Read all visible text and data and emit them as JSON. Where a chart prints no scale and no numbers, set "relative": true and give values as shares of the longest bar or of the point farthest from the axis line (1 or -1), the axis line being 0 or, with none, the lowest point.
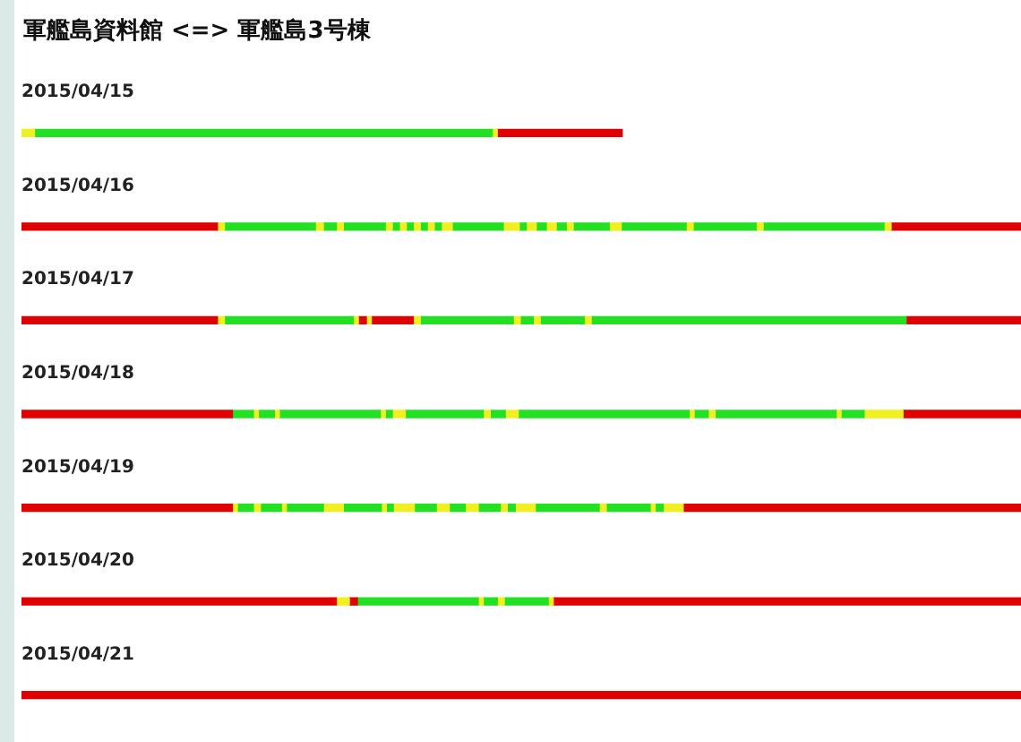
{
  "chart_data": {
    "type": "bar",
    "orientation": "horizontal",
    "stacked": true,
    "relative": true,
    "legend": false,
    "tick_labels": "y",
    "title": "軍艦島資料館 <=> 軍艦島3号棟",
    "categories": [
      "2015/04/15",
      "2015/04/16",
      "2015/04/17",
      "2015/04/18",
      "2015/04/19",
      "2015/04/20",
      "2015/04/21"
    ],
    "series": [
      {
        "values": [
          0.013,
          0.196,
          0.196,
          0.211,
          0.211,
          0.315,
          1
        ],
        "colors": [
          "#f0f020",
          "#e00000",
          "#e00000",
          "#e00000",
          "#e00000",
          "#e00000",
          "#e00000"
        ]
      },
      {
        "values": [
          0.458,
          0.007,
          0.007,
          0.021,
          0.005,
          0.013,
          null
        ],
        "colors": [
          "#22e022",
          "#f0f020",
          "#f0f020",
          "#22e022",
          "#f0f020",
          "#f0f020",
          null
        ]
      },
      {
        "values": [
          0.005,
          0.091,
          0.129,
          0.005,
          0.016,
          0.008,
          null
        ],
        "colors": [
          "#f0f020",
          "#22e022",
          "#22e022",
          "#f0f020",
          "#22e022",
          "#e00000",
          null
        ]
      },
      {
        "values": [
          0.125,
          0.008,
          0.005,
          0.016,
          0.007,
          0.121,
          null
        ],
        "colors": [
          "#e00000",
          "#f0f020",
          "#f0f020",
          "#22e022",
          "#f0f020",
          "#22e022",
          null
        ]
      },
      {
        "values": [
          null,
          0.013,
          0.008,
          0.005,
          0.021,
          0.005,
          null
        ],
        "colors": [
          null,
          "#22e022",
          "#e00000",
          "#f0f020",
          "#22e022",
          "#f0f020",
          null
        ]
      },
      {
        "values": [
          null,
          0.007,
          0.005,
          0.101,
          0.005,
          0.014,
          null
        ],
        "colors": [
          null,
          "#f0f020",
          "#f0f020",
          "#22e022",
          "#f0f020",
          "#22e022",
          null
        ]
      },
      {
        "values": [
          null,
          0.042,
          0.042,
          0.005,
          0.037,
          0.007,
          null
        ],
        "colors": [
          null,
          "#22e022",
          "#e00000",
          "#f0f020",
          "#22e022",
          "#f0f020",
          null
        ]
      },
      {
        "values": [
          null,
          0.007,
          0.007,
          0.007,
          0.02,
          0.044,
          null
        ],
        "colors": [
          null,
          "#f0f020",
          "#f0f020",
          "#22e022",
          "#f0f020",
          "#22e022",
          null
        ]
      },
      {
        "values": [
          null,
          0.007,
          0.093,
          0.013,
          0.038,
          0.005,
          null
        ],
        "colors": [
          null,
          "#22e022",
          "#22e022",
          "#f0f020",
          "#22e022",
          "#f0f020",
          null
        ]
      },
      {
        "values": [
          null,
          0.007,
          0.007,
          0.078,
          0.005,
          0.468,
          null
        ],
        "colors": [
          null,
          "#f0f020",
          "#f0f020",
          "#22e022",
          "#f0f020",
          "#e00000",
          null
        ]
      },
      {
        "values": [
          null,
          0.007,
          0.013,
          0.007,
          0.007,
          null,
          null
        ],
        "colors": [
          null,
          "#22e022",
          "#22e022",
          "#f0f020",
          "#22e022",
          null,
          null
        ]
      },
      {
        "values": [
          null,
          0.007,
          0.007,
          0.015,
          0.021,
          null,
          null
        ],
        "colors": [
          null,
          "#f0f020",
          "#f0f020",
          "#22e022",
          "#f0f020",
          null,
          null
        ]
      },
      {
        "values": [
          null,
          0.007,
          0.044,
          0.013,
          0.022,
          null,
          null
        ],
        "colors": [
          null,
          "#22e022",
          "#22e022",
          "#f0f020",
          "#22e022",
          null,
          null
        ]
      },
      {
        "values": [
          null,
          0.007,
          0.007,
          0.171,
          0.013,
          null,
          null
        ],
        "colors": [
          null,
          "#f0f020",
          "#f0f020",
          "#22e022",
          "#f0f020",
          null,
          null
        ]
      },
      {
        "values": [
          null,
          0.007,
          0.315,
          0.005,
          0.016,
          null,
          null
        ],
        "colors": [
          null,
          "#22e022",
          "#22e022",
          "#f0f020",
          "#22e022",
          null,
          null
        ]
      },
      {
        "values": [
          null,
          0.011,
          0.115,
          0.014,
          0.013,
          null,
          null
        ],
        "colors": [
          null,
          "#f0f020",
          "#e00000",
          "#22e022",
          "#f0f020",
          null,
          null
        ]
      },
      {
        "values": [
          null,
          0.051,
          null,
          0.007,
          0.022,
          null,
          null
        ],
        "colors": [
          null,
          "#22e022",
          null,
          "#f0f020",
          "#22e022",
          null,
          null
        ]
      },
      {
        "values": [
          null,
          0.016,
          null,
          0.121,
          0.007,
          null,
          null
        ],
        "colors": [
          null,
          "#f0f020",
          null,
          "#22e022",
          "#f0f020",
          null,
          null
        ]
      },
      {
        "values": [
          null,
          0.007,
          null,
          0.005,
          0.008,
          null,
          null
        ],
        "colors": [
          null,
          "#22e022",
          null,
          "#f0f020",
          "#22e022",
          null,
          null
        ]
      },
      {
        "values": [
          null,
          0.01,
          null,
          0.023,
          0.02,
          null,
          null
        ],
        "colors": [
          null,
          "#f0f020",
          null,
          "#22e022",
          "#f0f020",
          null,
          null
        ]
      },
      {
        "values": [
          null,
          0.01,
          null,
          0.039,
          0.064,
          null,
          null
        ],
        "colors": [
          null,
          "#22e022",
          null,
          "#f0f020",
          "#22e022",
          null,
          null
        ]
      },
      {
        "values": [
          null,
          0.01,
          null,
          0.118,
          0.007,
          null,
          null
        ],
        "colors": [
          null,
          "#f0f020",
          null,
          "#e00000",
          "#f0f020",
          null,
          null
        ]
      },
      {
        "values": [
          null,
          0.01,
          null,
          null,
          0.044,
          null,
          null
        ],
        "colors": [
          null,
          "#22e022",
          null,
          null,
          "#22e022",
          null,
          null
        ]
      },
      {
        "values": [
          null,
          0.007,
          null,
          null,
          0.005,
          null,
          null
        ],
        "colors": [
          null,
          "#f0f020",
          null,
          null,
          "#f0f020",
          null,
          null
        ]
      },
      {
        "values": [
          null,
          0.036,
          null,
          null,
          0.008,
          null,
          null
        ],
        "colors": [
          null,
          "#22e022",
          null,
          null,
          "#22e022",
          null,
          null
        ]
      },
      {
        "values": [
          null,
          0.012,
          null,
          null,
          0.02,
          null,
          null
        ],
        "colors": [
          null,
          "#f0f020",
          null,
          null,
          "#f0f020",
          null,
          null
        ]
      },
      {
        "values": [
          null,
          0.065,
          null,
          null,
          0.338,
          null,
          null
        ],
        "colors": [
          null,
          "#22e022",
          null,
          null,
          "#e00000",
          null,
          null
        ]
      },
      {
        "values": [
          null,
          0.007,
          null,
          null,
          null,
          null,
          null
        ],
        "colors": [
          null,
          "#f0f020",
          null,
          null,
          null,
          null,
          null
        ]
      },
      {
        "values": [
          null,
          0.063,
          null,
          null,
          null,
          null,
          null
        ],
        "colors": [
          null,
          "#22e022",
          null,
          null,
          null,
          null,
          null
        ]
      },
      {
        "values": [
          null,
          0.007,
          null,
          null,
          null,
          null,
          null
        ],
        "colors": [
          null,
          "#f0f020",
          null,
          null,
          null,
          null,
          null
        ]
      },
      {
        "values": [
          null,
          0.121,
          null,
          null,
          null,
          null,
          null
        ],
        "colors": [
          null,
          "#22e022",
          null,
          null,
          null,
          null,
          null
        ]
      },
      {
        "values": [
          null,
          0.007,
          null,
          null,
          null,
          null,
          null
        ],
        "colors": [
          null,
          "#f0f020",
          null,
          null,
          null,
          null,
          null
        ]
      },
      {
        "values": [
          null,
          0.13,
          null,
          null,
          null,
          null,
          null
        ],
        "colors": [
          null,
          "#e00000",
          null,
          null,
          null,
          null,
          null
        ]
      }
    ]
  }
}
